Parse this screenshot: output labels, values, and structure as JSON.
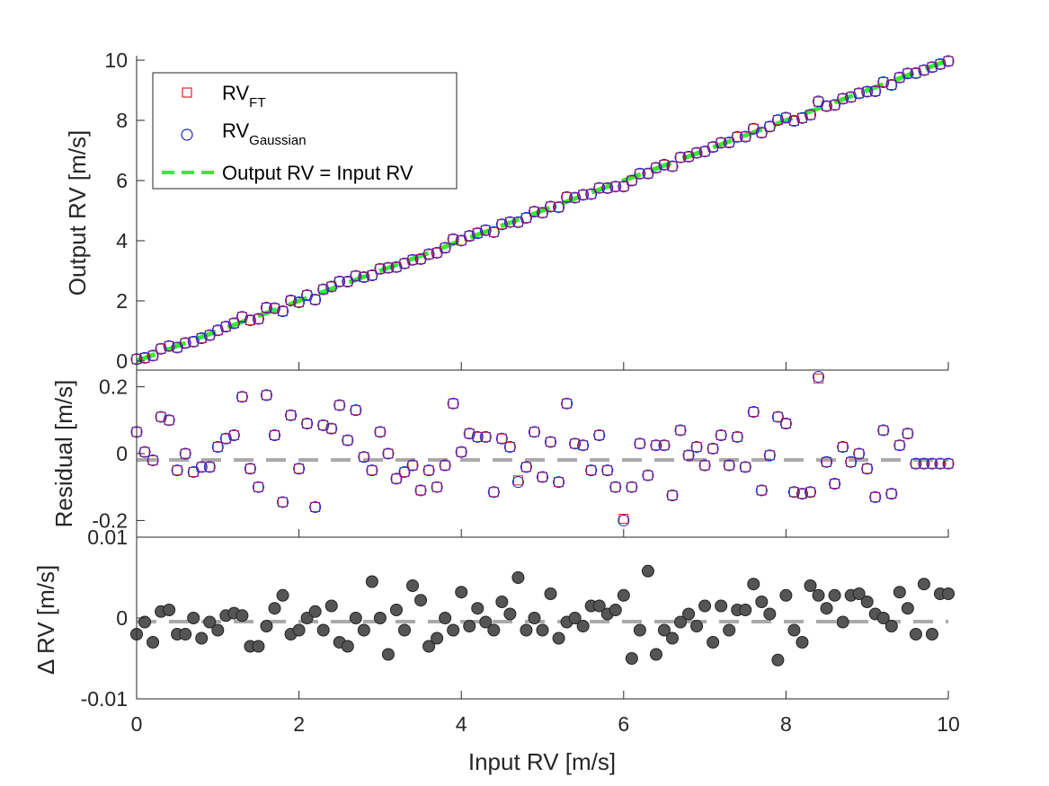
{
  "colors": {
    "ft_marker": "#d62728",
    "gaussian_marker": "#1f1fd0",
    "identity_line": "#33ee33",
    "zero_line": "#aaaaaa",
    "delta_fill": "#555555",
    "axis": "#262626"
  },
  "chart_data": [
    {
      "type": "scatter",
      "panel": "top",
      "title": "",
      "xlabel": "",
      "ylabel": "Output RV [m/s]",
      "xlim": [
        0,
        10
      ],
      "ylim": [
        -0.3,
        10.15
      ],
      "xticks": [
        0,
        2,
        4,
        6,
        8,
        10
      ],
      "yticks": [
        0,
        2,
        4,
        6,
        8,
        10
      ],
      "yticklabels": [
        "0",
        "2",
        "4",
        "6",
        "8",
        "10"
      ],
      "legend": {
        "placement": "top-left",
        "entries": [
          {
            "base": "RV",
            "sub": "FT",
            "marker": "red-square"
          },
          {
            "base": "RV",
            "sub": "Gaussian",
            "marker": "blue-circle"
          },
          {
            "base": "Output RV = Input RV",
            "sub": "",
            "marker": "green-dashed-line"
          }
        ]
      },
      "series_note": "Output RV plotted = Input RV + residual (both FT and Gaussian overlap)",
      "identity_line": {
        "x": [
          0,
          10
        ],
        "y": [
          0,
          10
        ],
        "style": "dashed"
      }
    },
    {
      "type": "scatter",
      "panel": "middle",
      "xlabel": "",
      "ylabel": "Residual [m/s]",
      "xlim": [
        0,
        10
      ],
      "ylim": [
        -0.25,
        0.25
      ],
      "xticks": [
        0,
        2,
        4,
        6,
        8,
        10
      ],
      "yticks": [
        -0.2,
        0,
        0.2
      ],
      "yticklabels": [
        "-0.2",
        "0",
        "0.2"
      ],
      "zero_line": {
        "y": 0,
        "style": "dashed"
      },
      "x": [
        0.0,
        0.1,
        0.2,
        0.3,
        0.4,
        0.5,
        0.6,
        0.7,
        0.8,
        0.9,
        1.0,
        1.1,
        1.2,
        1.3,
        1.4,
        1.5,
        1.6,
        1.7,
        1.8,
        1.9,
        2.0,
        2.1,
        2.2,
        2.3,
        2.4,
        2.5,
        2.6,
        2.7,
        2.8,
        2.9,
        3.0,
        3.1,
        3.2,
        3.3,
        3.4,
        3.5,
        3.6,
        3.7,
        3.8,
        3.9,
        4.0,
        4.1,
        4.2,
        4.3,
        4.4,
        4.5,
        4.6,
        4.7,
        4.8,
        4.9,
        5.0,
        5.1,
        5.2,
        5.3,
        5.4,
        5.5,
        5.6,
        5.7,
        5.8,
        5.9,
        6.0,
        6.1,
        6.2,
        6.3,
        6.4,
        6.5,
        6.6,
        6.7,
        6.8,
        6.9,
        7.0,
        7.1,
        7.2,
        7.3,
        7.4,
        7.5,
        7.6,
        7.7,
        7.8,
        7.9,
        8.0,
        8.1,
        8.2,
        8.3,
        8.4,
        8.5,
        8.6,
        8.7,
        8.8,
        8.9,
        9.0,
        9.1,
        9.2,
        9.3,
        9.4,
        9.5,
        9.6,
        9.7,
        9.8,
        9.9,
        10.0
      ],
      "residual_gaussian": [
        0.065,
        0.005,
        -0.02,
        0.11,
        0.1,
        -0.05,
        0.0,
        -0.055,
        -0.04,
        -0.04,
        0.02,
        0.045,
        0.055,
        0.17,
        -0.045,
        -0.1,
        0.175,
        0.055,
        -0.145,
        0.115,
        -0.045,
        0.09,
        -0.16,
        0.085,
        0.075,
        0.145,
        0.04,
        0.13,
        -0.01,
        -0.05,
        0.065,
        0.0,
        -0.075,
        -0.055,
        -0.035,
        -0.11,
        -0.05,
        -0.1,
        -0.035,
        0.15,
        0.005,
        0.06,
        0.05,
        0.05,
        -0.115,
        0.045,
        0.02,
        -0.085,
        -0.04,
        0.065,
        -0.07,
        0.035,
        -0.085,
        0.15,
        0.03,
        0.025,
        -0.05,
        0.055,
        -0.05,
        -0.1,
        -0.2,
        -0.1,
        0.03,
        -0.065,
        0.025,
        0.025,
        -0.125,
        0.07,
        -0.005,
        0.02,
        -0.035,
        0.015,
        0.055,
        -0.035,
        0.05,
        -0.04,
        0.125,
        -0.11,
        -0.005,
        0.11,
        0.09,
        -0.115,
        -0.12,
        -0.115,
        0.23,
        -0.025,
        -0.09,
        0.02,
        -0.025,
        0.0,
        -0.045,
        -0.13,
        0.07,
        -0.12,
        0.025,
        0.06,
        -0.03,
        -0.03,
        -0.03,
        -0.03,
        -0.03
      ],
      "residual_ft": [
        0.065,
        0.005,
        -0.02,
        0.11,
        0.1,
        -0.05,
        0.0,
        -0.055,
        -0.04,
        -0.04,
        0.02,
        0.045,
        0.055,
        0.17,
        -0.045,
        -0.1,
        0.175,
        0.055,
        -0.145,
        0.115,
        -0.045,
        0.09,
        -0.16,
        0.085,
        0.075,
        0.145,
        0.04,
        0.13,
        -0.01,
        -0.05,
        0.065,
        0.0,
        -0.075,
        -0.055,
        -0.035,
        -0.11,
        -0.05,
        -0.1,
        -0.035,
        0.15,
        0.005,
        0.06,
        0.05,
        0.05,
        -0.115,
        0.045,
        0.02,
        -0.08,
        -0.04,
        0.065,
        -0.07,
        0.035,
        -0.085,
        0.15,
        0.03,
        0.025,
        -0.05,
        0.055,
        -0.05,
        -0.1,
        -0.195,
        -0.1,
        0.03,
        -0.065,
        0.025,
        0.025,
        -0.125,
        0.07,
        -0.005,
        0.02,
        -0.035,
        0.015,
        0.055,
        -0.035,
        0.05,
        -0.04,
        0.125,
        -0.11,
        -0.005,
        0.11,
        0.09,
        -0.115,
        -0.12,
        -0.115,
        0.225,
        -0.025,
        -0.09,
        0.02,
        -0.025,
        0.0,
        -0.045,
        -0.13,
        0.07,
        -0.12,
        0.025,
        0.06,
        -0.03,
        -0.03,
        -0.03,
        -0.03,
        -0.03
      ]
    },
    {
      "type": "scatter",
      "panel": "bottom",
      "xlabel": "Input RV [m/s]",
      "ylabel": "Δ RV [m/s]",
      "xlim": [
        0,
        10
      ],
      "ylim": [
        -0.01,
        0.01
      ],
      "xticks": [
        0,
        2,
        4,
        6,
        8,
        10
      ],
      "xticklabels": [
        "0",
        "2",
        "4",
        "6",
        "8",
        "10"
      ],
      "yticks": [
        -0.01,
        0,
        0.01
      ],
      "yticklabels": [
        "-0.01",
        "0",
        "0.01"
      ],
      "zero_line": {
        "y": 0,
        "style": "dashed"
      },
      "x": [
        0.0,
        0.1,
        0.2,
        0.3,
        0.4,
        0.5,
        0.6,
        0.7,
        0.8,
        0.9,
        1.0,
        1.1,
        1.2,
        1.3,
        1.4,
        1.5,
        1.6,
        1.7,
        1.8,
        1.9,
        2.0,
        2.1,
        2.2,
        2.3,
        2.4,
        2.5,
        2.6,
        2.7,
        2.8,
        2.9,
        3.0,
        3.1,
        3.2,
        3.3,
        3.4,
        3.5,
        3.6,
        3.7,
        3.8,
        3.9,
        4.0,
        4.1,
        4.2,
        4.3,
        4.4,
        4.5,
        4.6,
        4.7,
        4.8,
        4.9,
        5.0,
        5.1,
        5.2,
        5.3,
        5.4,
        5.5,
        5.6,
        5.7,
        5.8,
        5.9,
        6.0,
        6.1,
        6.2,
        6.3,
        6.4,
        6.5,
        6.6,
        6.7,
        6.8,
        6.9,
        7.0,
        7.1,
        7.2,
        7.3,
        7.4,
        7.5,
        7.6,
        7.7,
        7.8,
        7.9,
        8.0,
        8.1,
        8.2,
        8.3,
        8.4,
        8.5,
        8.6,
        8.7,
        8.8,
        8.9,
        9.0,
        9.1,
        9.2,
        9.3,
        9.4,
        9.5,
        9.6,
        9.7,
        9.8,
        9.9,
        10.0
      ],
      "delta": [
        -0.002,
        -0.0005,
        -0.003,
        0.0008,
        0.001,
        -0.002,
        -0.002,
        0.0,
        -0.0025,
        -0.0005,
        -0.0015,
        0.0003,
        0.0006,
        0.0003,
        -0.0035,
        -0.0035,
        -0.001,
        0.0012,
        0.0028,
        -0.002,
        -0.0015,
        0.0,
        0.0008,
        -0.0015,
        0.0015,
        -0.003,
        -0.0035,
        0.0,
        -0.0015,
        0.0045,
        0.0,
        -0.0045,
        0.001,
        -0.0015,
        0.004,
        0.0022,
        -0.0035,
        -0.0025,
        0.0,
        -0.0015,
        0.0032,
        -0.001,
        0.0012,
        -0.0005,
        -0.0015,
        0.002,
        0.0005,
        0.005,
        -0.0015,
        0.0,
        -0.0015,
        0.003,
        -0.0025,
        -0.0005,
        0.0,
        -0.001,
        0.0015,
        0.0015,
        0.0005,
        0.001,
        0.0028,
        -0.005,
        -0.0015,
        0.0058,
        -0.0045,
        -0.0015,
        -0.0025,
        -0.0005,
        0.0005,
        -0.001,
        0.0015,
        -0.003,
        0.0015,
        -0.0015,
        0.001,
        0.001,
        0.0042,
        0.002,
        0.0005,
        -0.0052,
        0.0028,
        -0.0015,
        -0.003,
        0.004,
        0.0028,
        0.0012,
        0.0028,
        -0.0005,
        0.0028,
        0.003,
        0.002,
        0.0005,
        0.0,
        -0.001,
        0.0032,
        0.0012,
        -0.002,
        0.0042,
        -0.002,
        0.003,
        0.003
      ]
    }
  ]
}
